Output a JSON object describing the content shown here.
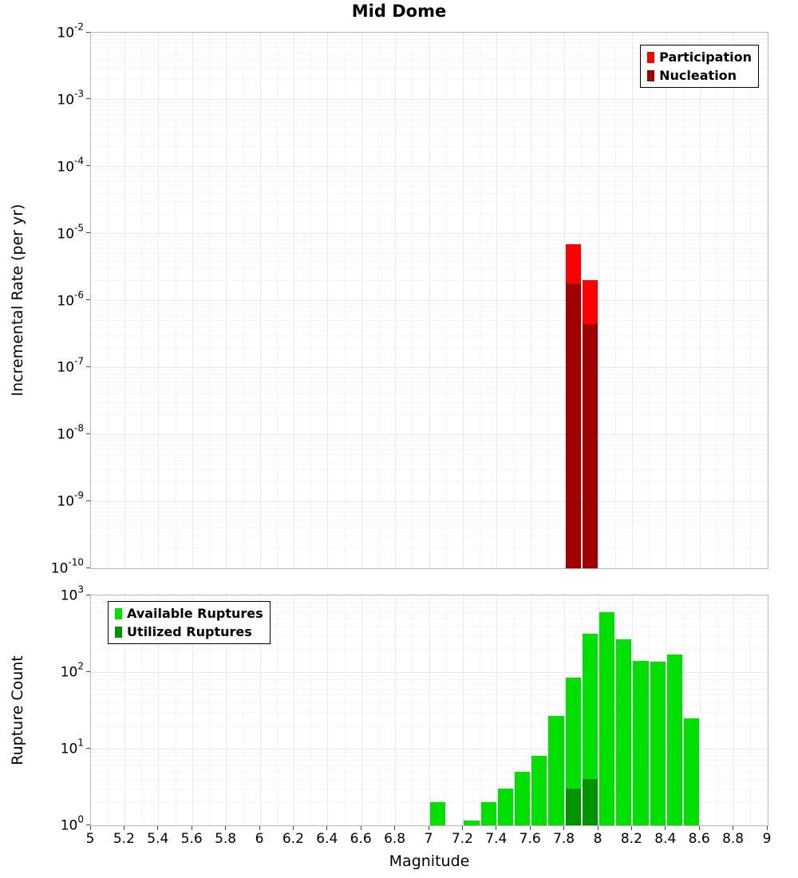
{
  "title": "Mid Dome",
  "chart_data": [
    {
      "type": "bar",
      "name": "incremental-rate-plot",
      "ylabel": "Incremental Rate (per yr)",
      "yscale": "log",
      "ylim": [
        1e-10,
        0.01
      ],
      "xlim": [
        5,
        9
      ],
      "bin_width": 0.1,
      "grid": true,
      "legend_position": "top-right",
      "y_tick_exponents": [
        -2,
        -3,
        -4,
        -5,
        -6,
        -7,
        -8,
        -9,
        -10
      ],
      "legend": [
        {
          "label": "Participation",
          "color": "#ff0000"
        },
        {
          "label": "Nucleation",
          "color": "#a00000"
        }
      ],
      "series": [
        {
          "name": "Participation",
          "color": "#ff0000",
          "bars": [
            {
              "x": 7.85,
              "value": 7e-06
            },
            {
              "x": 7.95,
              "value": 2e-06
            }
          ]
        },
        {
          "name": "Nucleation",
          "color": "#a00000",
          "bars": [
            {
              "x": 7.85,
              "value": 1.8e-06
            },
            {
              "x": 7.95,
              "value": 4.5e-07
            }
          ]
        }
      ]
    },
    {
      "type": "bar",
      "name": "rupture-count-plot",
      "ylabel": "Rupture Count",
      "xlabel": "Magnitude",
      "yscale": "log",
      "ylim": [
        1,
        1000
      ],
      "xlim": [
        5,
        9
      ],
      "bin_width": 0.1,
      "grid": true,
      "legend_position": "top-left",
      "y_tick_exponents": [
        3,
        2,
        1,
        0
      ],
      "x_ticks": [
        {
          "value": 5,
          "label": "5"
        },
        {
          "value": 5.2,
          "label": "5.2"
        },
        {
          "value": 5.4,
          "label": "5.4"
        },
        {
          "value": 5.6,
          "label": "5.6"
        },
        {
          "value": 5.8,
          "label": "5.8"
        },
        {
          "value": 6,
          "label": "6"
        },
        {
          "value": 6.2,
          "label": "6.2"
        },
        {
          "value": 6.4,
          "label": "6.4"
        },
        {
          "value": 6.6,
          "label": "6.6"
        },
        {
          "value": 6.8,
          "label": "6.8"
        },
        {
          "value": 7,
          "label": "7"
        },
        {
          "value": 7.2,
          "label": "7.2"
        },
        {
          "value": 7.4,
          "label": "7.4"
        },
        {
          "value": 7.6,
          "label": "7.6"
        },
        {
          "value": 7.8,
          "label": "7.8"
        },
        {
          "value": 8,
          "label": "8"
        },
        {
          "value": 8.2,
          "label": "8.2"
        },
        {
          "value": 8.4,
          "label": "8.4"
        },
        {
          "value": 8.6,
          "label": "8.6"
        },
        {
          "value": 8.8,
          "label": "8.8"
        },
        {
          "value": 9,
          "label": "9"
        }
      ],
      "legend": [
        {
          "label": "Available Ruptures",
          "color": "#00e000"
        },
        {
          "label": "Utilized Ruptures",
          "color": "#009300"
        }
      ],
      "series": [
        {
          "name": "Available Ruptures",
          "color": "#00e000",
          "bars": [
            {
              "x": 7.05,
              "value": 2
            },
            {
              "x": 7.25,
              "value": 1
            },
            {
              "x": 7.35,
              "value": 2
            },
            {
              "x": 7.45,
              "value": 3
            },
            {
              "x": 7.55,
              "value": 5
            },
            {
              "x": 7.65,
              "value": 8
            },
            {
              "x": 7.75,
              "value": 27
            },
            {
              "x": 7.85,
              "value": 85
            },
            {
              "x": 7.95,
              "value": 320
            },
            {
              "x": 8.05,
              "value": 600
            },
            {
              "x": 8.15,
              "value": 270
            },
            {
              "x": 8.25,
              "value": 140
            },
            {
              "x": 8.35,
              "value": 135
            },
            {
              "x": 8.45,
              "value": 170
            },
            {
              "x": 8.55,
              "value": 25
            }
          ]
        },
        {
          "name": "Utilized Ruptures",
          "color": "#009300",
          "bars": [
            {
              "x": 7.85,
              "value": 3
            },
            {
              "x": 7.95,
              "value": 4
            }
          ]
        }
      ]
    }
  ]
}
